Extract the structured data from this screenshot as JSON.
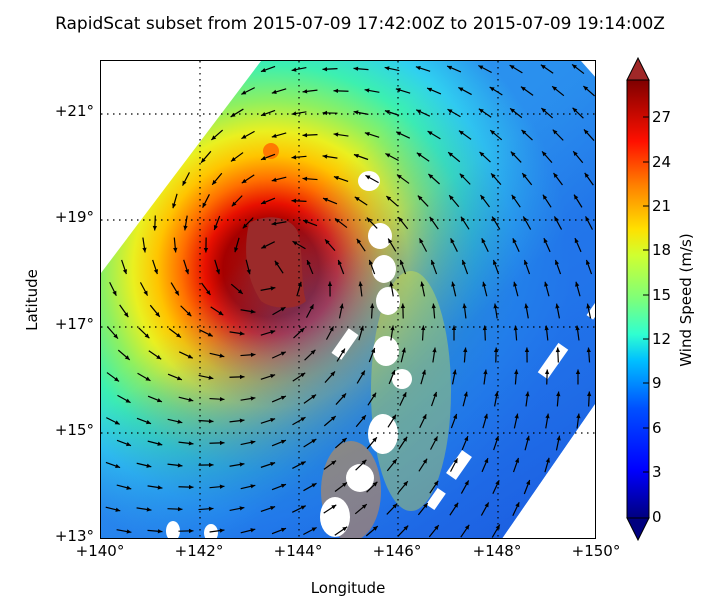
{
  "chart_data": {
    "type": "heatmap",
    "title": "RapidScat subset from 2015-07-09 17:42:00Z to 2015-07-09 19:14:00Z",
    "xlabel": "Longitude",
    "ylabel": "Latitude",
    "x_ticks": [
      "+140°",
      "+142°",
      "+144°",
      "+146°",
      "+148°",
      "+150°"
    ],
    "y_ticks": [
      "+21°",
      "+19°",
      "+17°",
      "+15°",
      "+13°"
    ],
    "xlim": [
      140,
      150
    ],
    "ylim": [
      13,
      22
    ],
    "grid": "dotted",
    "colorbar": {
      "label": "Wind Speed (m/s)",
      "ticks": [
        "27",
        "24",
        "21",
        "18",
        "15",
        "12",
        "9",
        "6",
        "3",
        "0"
      ],
      "range": [
        0,
        30
      ],
      "colormap": "jet",
      "extend": "both"
    },
    "description": "Scatterometer swath of ocean surface wind speed with wind direction vectors; cyclonic circulation centered near 143.4°E, 18.2°N with peak winds >30 m/s (dark red core), radially decreasing to ~10-15 m/s on the periphery; lowest speeds (3-8 m/s) in the southeast corner.",
    "storm_center": {
      "lon": 143.4,
      "lat": 18.2,
      "max_wind_ms": 30
    },
    "swath_rotation": "diagonal, NW-SE edges, missing data in NW and SE corners"
  }
}
